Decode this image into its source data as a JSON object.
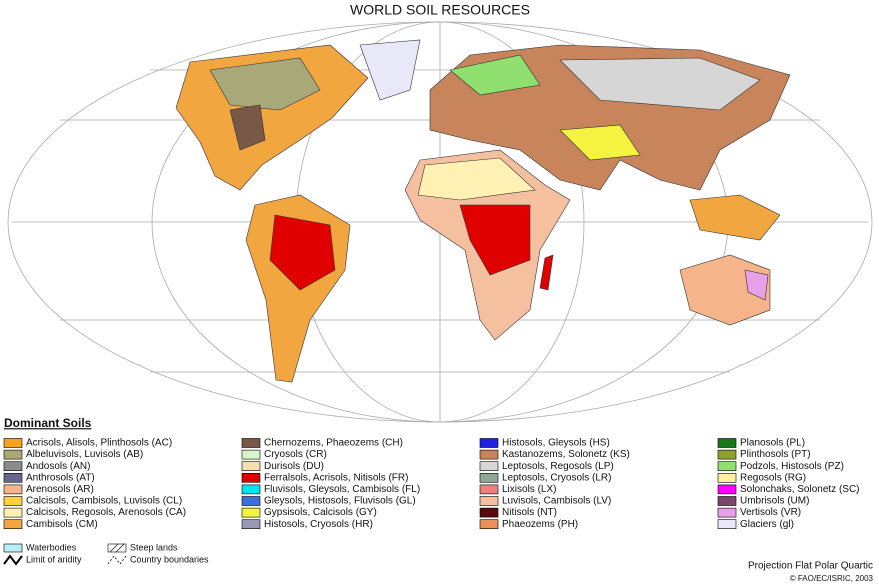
{
  "title": "WORLD SOIL RESOURCES",
  "legend": {
    "title": "Dominant Soils",
    "items": [
      {
        "label": "Acrisols, Alisols, Plinthosols (AC)",
        "color": "#f5a21f"
      },
      {
        "label": "Albeluvisols, Luvisols (AB)",
        "color": "#a8a878"
      },
      {
        "label": "Andosols (AN)",
        "color": "#8c8c8c"
      },
      {
        "label": "Anthrosols (AT)",
        "color": "#66668f"
      },
      {
        "label": "Arenosols (AR)",
        "color": "#f5b48a"
      },
      {
        "label": "Calcisols, Cambisols, Luvisols (CL)",
        "color": "#ffd040"
      },
      {
        "label": "Calcisols, Regosols, Arenosols (CA)",
        "color": "#fff0b4"
      },
      {
        "label": "Cambisols (CM)",
        "color": "#f2a640"
      },
      {
        "label": "Chernozems, Phaeozems (CH)",
        "color": "#7a5848"
      },
      {
        "label": "Cryosols (CR)",
        "color": "#d8f4cc"
      },
      {
        "label": "Durisols (DU)",
        "color": "#f6dfb0"
      },
      {
        "label": "Ferralsols, Acrisols, Nitisols (FR)",
        "color": "#e00000"
      },
      {
        "label": "Fluvisols, Gleysols, Cambisols (FL)",
        "color": "#00e6f0"
      },
      {
        "label": "Gleysols, Histosols, Fluvisols (GL)",
        "color": "#3a70d8"
      },
      {
        "label": "Gypsisols, Calcisols (GY)",
        "color": "#f4f440"
      },
      {
        "label": "Histosols, Cryosols (HR)",
        "color": "#9898b8"
      },
      {
        "label": "Histosols, Gleysols (HS)",
        "color": "#2020e0"
      },
      {
        "label": "Kastanozems, Solonetz (KS)",
        "color": "#c8845a"
      },
      {
        "label": "Leptosols, Regosols (LP)",
        "color": "#d6d6d6"
      },
      {
        "label": "Leptosols, Cryosols (LR)",
        "color": "#8ea898"
      },
      {
        "label": "Lixisols (LX)",
        "color": "#f08080"
      },
      {
        "label": "Luvisols, Cambisols (LV)",
        "color": "#f4c0a0"
      },
      {
        "label": "Nitisols (NT)",
        "color": "#5a0a0a"
      },
      {
        "label": "Phaeozems (PH)",
        "color": "#e8925a"
      },
      {
        "label": "Planosols (PL)",
        "color": "#187818"
      },
      {
        "label": "Plinthosols (PT)",
        "color": "#8ea030"
      },
      {
        "label": "Podzols, Histosols (PZ)",
        "color": "#90e070"
      },
      {
        "label": "Regosols (RG)",
        "color": "#fff0a0"
      },
      {
        "label": "Solonchaks, Solonetz (SC)",
        "color": "#ff00ff"
      },
      {
        "label": "Umbrisols (UM)",
        "color": "#7a4868"
      },
      {
        "label": "Vertisols (VR)",
        "color": "#e8a0e8"
      },
      {
        "label": "Glaciers (gl)",
        "color": "#e8e8f8"
      }
    ]
  },
  "symbols": {
    "waterbodies": "Waterbodies",
    "aridity": "Limit of aridity",
    "steep": "Steep lands",
    "boundaries": "Country boundaries"
  },
  "projection": "Projection Flat Polar Quartic",
  "credit": "© FAO/EC/ISRIC, 2003"
}
